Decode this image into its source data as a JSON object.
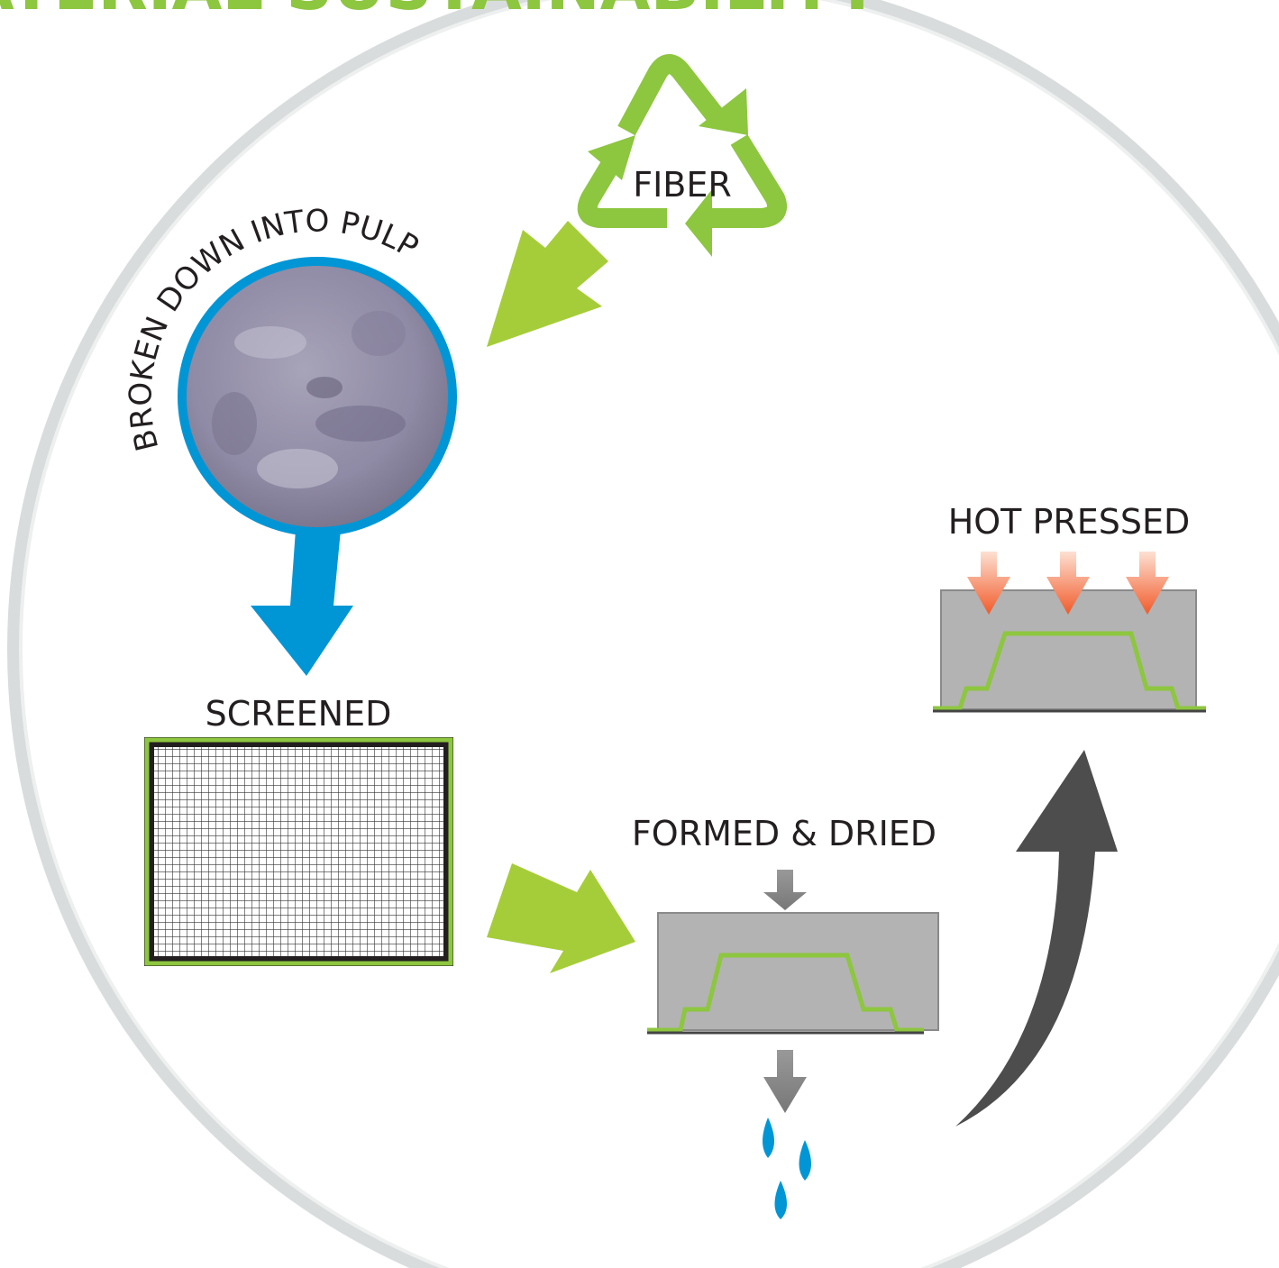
{
  "header": {
    "title": "ATERIAL SUSTAINABILITY"
  },
  "steps": {
    "fiber": "FIBER",
    "pulp": "BROKEN DOWN INTO PULP",
    "screened": "SCREENED",
    "formed": "FORMED & DRIED",
    "pressed": "HOT PRESSED"
  }
}
